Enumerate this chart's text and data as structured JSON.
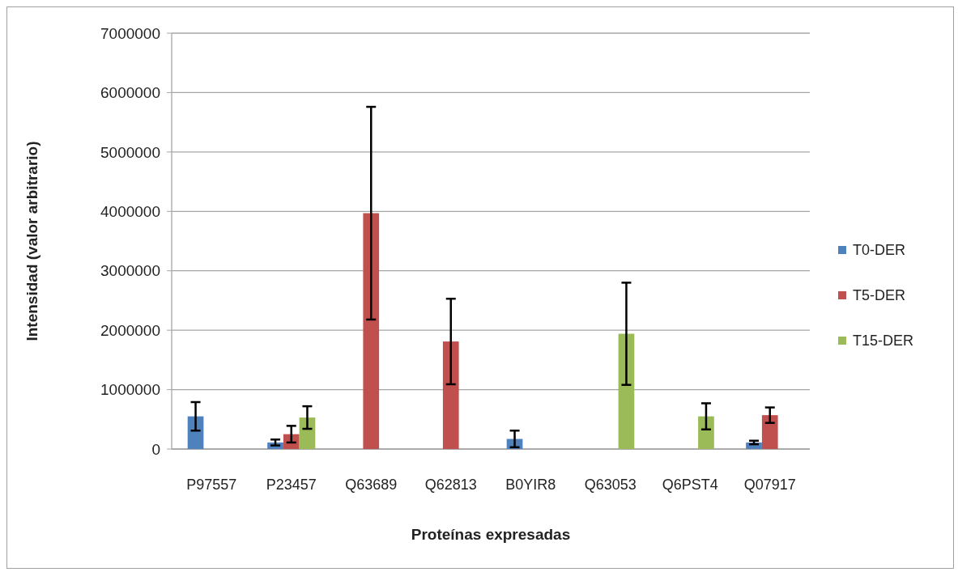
{
  "chart_data": {
    "type": "bar",
    "xlabel": "Proteínas expresadas",
    "ylabel": "Intensidad (valor arbitrario)",
    "categories": [
      "P97557",
      "P23457",
      "Q63689",
      "Q62813",
      "B0YIR8",
      "Q63053",
      "Q6PST4",
      "Q07917"
    ],
    "series": [
      {
        "name": "T0-DER",
        "color": "#4f81bd",
        "values": [
          550000,
          110000,
          null,
          null,
          170000,
          null,
          null,
          110000
        ],
        "errors": [
          240000,
          50000,
          null,
          null,
          140000,
          null,
          null,
          30000
        ]
      },
      {
        "name": "T5-DER",
        "color": "#c0504d",
        "values": [
          null,
          250000,
          3970000,
          1810000,
          null,
          null,
          null,
          570000
        ],
        "errors": [
          null,
          140000,
          1790000,
          720000,
          null,
          null,
          null,
          130000
        ]
      },
      {
        "name": "T15-DER",
        "color": "#9bbb59",
        "values": [
          null,
          530000,
          null,
          null,
          null,
          1940000,
          550000,
          null
        ],
        "errors": [
          null,
          190000,
          null,
          null,
          null,
          860000,
          220000,
          null
        ]
      }
    ],
    "ylim": [
      0,
      7000000
    ],
    "yticks": [
      0,
      1000000,
      2000000,
      3000000,
      4000000,
      5000000,
      6000000,
      7000000
    ],
    "grid": "y",
    "legend": "right"
  }
}
